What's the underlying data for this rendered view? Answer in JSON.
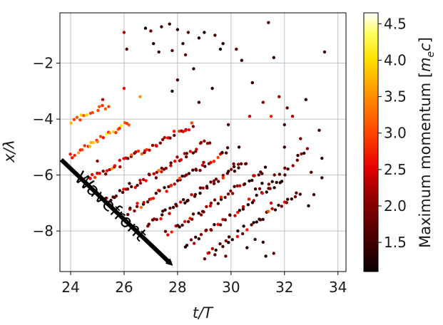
{
  "chart_data": {
    "type": "scatter",
    "title": "",
    "xlabel": "t/T",
    "ylabel": "x/λ",
    "xlim": [
      23.6,
      34.3
    ],
    "ylim": [
      -9.45,
      -0.2
    ],
    "xticks": [
      24,
      26,
      28,
      30,
      32,
      34
    ],
    "yticks": [
      -2,
      -4,
      -6,
      -8
    ],
    "xtick_labels": [
      "24",
      "26",
      "28",
      "30",
      "32",
      "34"
    ],
    "ytick_labels": [
      "−2",
      "−4",
      "−6",
      "−8"
    ],
    "grid": true,
    "colorbar": {
      "label": "Maximum momentum [m_e c]",
      "label_prefix": "Maximum momentum [",
      "label_m": "m",
      "label_sub": "e",
      "label_c": "c",
      "label_suffix": "]",
      "range": [
        1.1,
        4.65
      ],
      "ticks": [
        1.5,
        2.0,
        2.5,
        3.0,
        3.5,
        4.0,
        4.5
      ],
      "tick_labels": [
        "1.5",
        "2.0",
        "2.5",
        "3.0",
        "3.5",
        "4.0",
        "4.5"
      ],
      "colormap": "hot",
      "placement": "right"
    },
    "annotation": {
      "text": "Wavefront",
      "arrow_from": [
        23.65,
        -5.45
      ],
      "arrow_to": [
        28.0,
        -9.4
      ]
    },
    "bands": [
      {
        "x0": 24.0,
        "y0": -4.1,
        "x1": 25.4,
        "y1": -3.5,
        "n": 14,
        "cmin": 2.6,
        "cmax": 4.0
      },
      {
        "x0": 24.0,
        "y0": -5.35,
        "x1": 26.2,
        "y1": -4.1,
        "n": 26,
        "cmin": 2.5,
        "cmax": 4.4
      },
      {
        "x0": 24.6,
        "y0": -6.2,
        "x1": 28.6,
        "y1": -4.2,
        "n": 48,
        "cmin": 1.6,
        "cmax": 3.6
      },
      {
        "x0": 25.4,
        "y0": -6.9,
        "x1": 29.2,
        "y1": -4.75,
        "n": 44,
        "cmin": 1.4,
        "cmax": 3.4
      },
      {
        "x0": 26.1,
        "y0": -7.35,
        "x1": 29.9,
        "y1": -5.1,
        "n": 46,
        "cmin": 1.3,
        "cmax": 3.3
      },
      {
        "x0": 26.9,
        "y0": -7.75,
        "x1": 30.6,
        "y1": -5.5,
        "n": 44,
        "cmin": 1.3,
        "cmax": 3.2
      },
      {
        "x0": 27.6,
        "y0": -8.1,
        "x1": 31.3,
        "y1": -5.8,
        "n": 40,
        "cmin": 1.2,
        "cmax": 3.0
      },
      {
        "x0": 28.3,
        "y0": -8.55,
        "x1": 32.0,
        "y1": -6.1,
        "n": 38,
        "cmin": 1.2,
        "cmax": 3.0
      },
      {
        "x0": 29.0,
        "y0": -8.9,
        "x1": 32.6,
        "y1": -6.6,
        "n": 34,
        "cmin": 1.2,
        "cmax": 2.9
      },
      {
        "x0": 30.9,
        "y0": -6.6,
        "x1": 32.9,
        "y1": -5.1,
        "n": 14,
        "cmin": 1.2,
        "cmax": 2.6
      }
    ],
    "points": [
      [
        26.8,
        -0.75,
        1.2
      ],
      [
        27.0,
        -0.85,
        1.6
      ],
      [
        27.4,
        -0.7,
        1.4
      ],
      [
        27.7,
        -0.6,
        1.3
      ],
      [
        28.0,
        -0.8,
        1.2
      ],
      [
        28.4,
        -0.9,
        1.5
      ],
      [
        28.8,
        -1.1,
        1.3
      ],
      [
        29.0,
        -0.9,
        1.2
      ],
      [
        29.4,
        -1.0,
        1.4
      ],
      [
        29.7,
        -1.3,
        1.2
      ],
      [
        30.2,
        -1.5,
        1.6
      ],
      [
        30.4,
        -1.9,
        1.3
      ],
      [
        28.3,
        -1.7,
        1.7
      ],
      [
        28.6,
        -2.2,
        1.3
      ],
      [
        28.0,
        -2.6,
        1.4
      ],
      [
        27.8,
        -3.0,
        1.2
      ],
      [
        26.0,
        -0.9,
        2.0
      ],
      [
        25.2,
        -3.3,
        2.1
      ],
      [
        26.0,
        -2.9,
        2.4
      ],
      [
        26.1,
        -1.5,
        1.5
      ],
      [
        27.3,
        -1.6,
        1.4
      ],
      [
        27.1,
        -1.3,
        1.2
      ],
      [
        31.4,
        -0.55,
        1.5
      ],
      [
        31.6,
        -1.8,
        1.3
      ],
      [
        31.8,
        -3.2,
        1.9
      ],
      [
        30.8,
        -2.7,
        1.3
      ],
      [
        32.3,
        -3.9,
        2.0
      ],
      [
        32.8,
        -3.3,
        1.3
      ],
      [
        33.3,
        -4.4,
        1.4
      ],
      [
        33.5,
        -1.6,
        1.4
      ],
      [
        30.7,
        -3.9,
        2.2
      ],
      [
        31.2,
        -3.4,
        1.8
      ],
      [
        31.5,
        -3.9,
        2.6
      ],
      [
        32.1,
        -3.6,
        1.5
      ],
      [
        32.0,
        -4.2,
        1.4
      ],
      [
        32.5,
        -5.3,
        1.3
      ],
      [
        33.0,
        -5.9,
        1.5
      ],
      [
        33.4,
        -5.4,
        1.3
      ],
      [
        32.9,
        -7.1,
        1.2
      ],
      [
        33.1,
        -6.7,
        1.4
      ],
      [
        31.2,
        -8.4,
        1.3
      ],
      [
        31.6,
        -8.8,
        1.5
      ],
      [
        31.3,
        -8.9,
        1.2
      ],
      [
        30.9,
        -8.3,
        1.4
      ],
      [
        30.6,
        -8.6,
        1.3
      ],
      [
        29.8,
        -8.9,
        1.6
      ],
      [
        29.4,
        -8.85,
        1.4
      ],
      [
        31.4,
        -7.3,
        3.0
      ],
      [
        31.5,
        -7.0,
        2.2
      ],
      [
        31.1,
        -7.6,
        1.5
      ],
      [
        30.3,
        -5.0,
        1.3
      ],
      [
        30.1,
        -5.6,
        1.6
      ],
      [
        29.9,
        -4.2,
        1.5
      ],
      [
        28.8,
        -3.4,
        1.4
      ],
      [
        29.3,
        -2.9,
        1.3
      ],
      [
        27.8,
        -1.55,
        1.4
      ],
      [
        29.6,
        -1.5,
        1.2
      ],
      [
        28.2,
        -1.3,
        1.3
      ],
      [
        25.0,
        -5.5,
        1.8
      ],
      [
        26.6,
        -3.2,
        3.3
      ],
      [
        26.2,
        -6.3,
        1.4
      ],
      [
        27.2,
        -6.1,
        1.6
      ],
      [
        32.6,
        -4.7,
        1.7
      ],
      [
        32.0,
        -5.0,
        1.4
      ],
      [
        33.4,
        -6.1,
        1.3
      ]
    ]
  }
}
